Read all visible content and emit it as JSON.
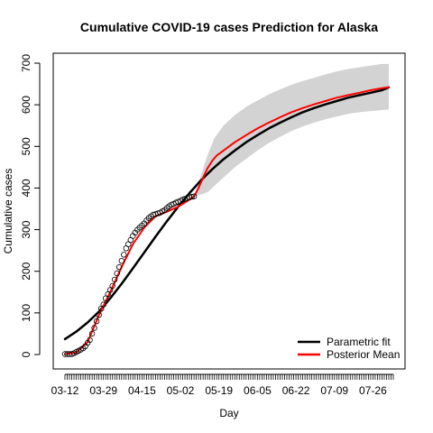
{
  "chart_data": {
    "type": "line",
    "title": "Cumulative COVID-19 cases Prediction for Alaska",
    "xlabel": "Day",
    "ylabel": "Cumulative cases",
    "xlim": [
      0,
      145
    ],
    "ylim": [
      0,
      700
    ],
    "y_ticks": [
      0,
      100,
      200,
      300,
      400,
      500,
      600,
      700
    ],
    "x_ticks": [
      {
        "day": 0,
        "label": "03-12"
      },
      {
        "day": 17,
        "label": "03-29"
      },
      {
        "day": 34,
        "label": "04-15"
      },
      {
        "day": 51,
        "label": "05-02"
      },
      {
        "day": 68,
        "label": "05-19"
      },
      {
        "day": 85,
        "label": "06-05"
      },
      {
        "day": 102,
        "label": "06-22"
      },
      {
        "day": 119,
        "label": "07-09"
      },
      {
        "day": 136,
        "label": "07-26"
      }
    ],
    "observed": {
      "name": "Observed",
      "days": [
        0,
        1,
        2,
        3,
        4,
        5,
        6,
        7,
        8,
        9,
        10,
        11,
        12,
        13,
        14,
        15,
        16,
        17,
        18,
        19,
        20,
        21,
        22,
        23,
        24,
        25,
        26,
        27,
        28,
        29,
        30,
        31,
        32,
        33,
        34,
        35,
        36,
        37,
        38,
        39,
        40,
        41,
        42,
        43,
        44,
        45,
        46,
        47,
        48,
        49,
        50,
        51,
        52,
        53,
        54,
        55,
        56,
        57
      ],
      "values": [
        1,
        1,
        1,
        1,
        3,
        6,
        9,
        12,
        15,
        20,
        28,
        35,
        50,
        64,
        80,
        95,
        110,
        120,
        135,
        145,
        155,
        165,
        180,
        195,
        210,
        225,
        240,
        255,
        265,
        275,
        285,
        293,
        300,
        305,
        310,
        315,
        322,
        328,
        332,
        336,
        337,
        339,
        341,
        344,
        347,
        352,
        356,
        360,
        362,
        365,
        367,
        369,
        372,
        374,
        376,
        378,
        379,
        380
      ]
    },
    "series": [
      {
        "name": "Parametric fit",
        "color": "#000000",
        "x": [
          0,
          5,
          10,
          15,
          20,
          25,
          30,
          35,
          40,
          45,
          50,
          55,
          60,
          65,
          70,
          75,
          80,
          85,
          90,
          95,
          100,
          105,
          110,
          115,
          120,
          125,
          130,
          135,
          140,
          143
        ],
        "values": [
          37,
          55,
          77,
          103,
          135,
          170,
          207,
          245,
          283,
          320,
          355,
          388,
          418,
          445,
          469,
          490,
          510,
          527,
          543,
          557,
          570,
          582,
          592,
          601,
          609,
          617,
          623,
          629,
          635,
          642
        ]
      },
      {
        "name": "Posterior Mean",
        "color": "#ff0000",
        "x": [
          0,
          5,
          10,
          15,
          20,
          25,
          30,
          35,
          40,
          45,
          50,
          55,
          57,
          59,
          61,
          63,
          65,
          67,
          70,
          75,
          80,
          85,
          90,
          95,
          100,
          105,
          110,
          115,
          120,
          125,
          130,
          135,
          140,
          143
        ],
        "values": [
          1,
          5,
          30,
          95,
          150,
          210,
          265,
          305,
          332,
          343,
          355,
          372,
          380,
          400,
          425,
          448,
          465,
          478,
          490,
          510,
          527,
          543,
          557,
          570,
          582,
          592,
          601,
          609,
          617,
          623,
          629,
          635,
          640,
          642
        ]
      }
    ],
    "band": {
      "name": "Credible interval",
      "color": "#d3d3d3",
      "x": [
        57,
        60,
        63,
        66,
        70,
        75,
        80,
        85,
        90,
        95,
        100,
        105,
        110,
        115,
        120,
        125,
        130,
        135,
        140,
        143
      ],
      "upper": [
        380,
        430,
        480,
        520,
        550,
        575,
        595,
        610,
        625,
        637,
        648,
        657,
        665,
        673,
        680,
        686,
        690,
        694,
        698,
        698
      ],
      "lower": [
        380,
        384,
        390,
        405,
        425,
        450,
        470,
        490,
        508,
        523,
        537,
        548,
        557,
        565,
        572,
        578,
        582,
        585,
        587,
        589
      ]
    },
    "legend": {
      "position": "bottom-right",
      "entries": [
        {
          "label": "Parametric fit",
          "color": "#000000"
        },
        {
          "label": "Posterior Mean",
          "color": "#ff0000"
        }
      ]
    }
  }
}
